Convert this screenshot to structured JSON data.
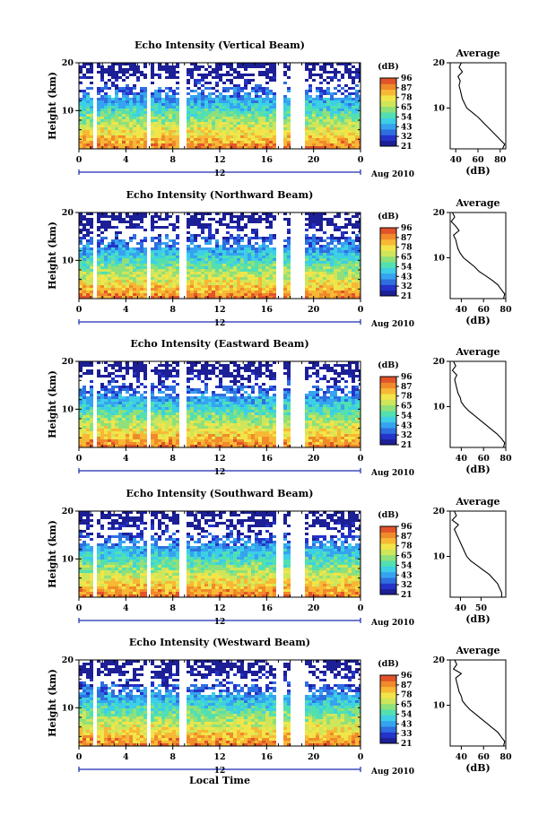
{
  "chart_data": [
    {
      "type": "heatmap",
      "title": "Echo Intensity (Vertical Beam)",
      "ylabel": "Height (km)",
      "xlabel": "",
      "x_ticks": [
        "0",
        "4",
        "8",
        "12",
        "16",
        "20",
        "0"
      ],
      "y_ticks": [
        "20",
        "10"
      ],
      "xlim": [
        0,
        24
      ],
      "ylim": [
        2,
        20
      ],
      "date_label": "Aug 2010",
      "day_label": "12",
      "colorbar": {
        "unit": "(dB)",
        "ticks": [
          "96",
          "87",
          "78",
          "65",
          "54",
          "43",
          "32",
          "21"
        ],
        "range": [
          21,
          96
        ]
      },
      "gaps": [
        [
          1,
          1.5
        ],
        [
          5.7,
          6
        ],
        [
          8.5,
          9
        ],
        [
          16.8,
          17.2
        ],
        [
          18,
          19
        ]
      ],
      "avg_profile": {
        "title": "Average",
        "xlabel": "(dB)",
        "x_ticks": [
          "40",
          "60",
          "80"
        ],
        "y_ticks": [
          "20",
          "10"
        ],
        "xlim": [
          35,
          85
        ],
        "ylim": [
          1,
          20
        ],
        "profile_points": [
          [
            45,
            20
          ],
          [
            43,
            19
          ],
          [
            46,
            18
          ],
          [
            42,
            17
          ],
          [
            44,
            16
          ],
          [
            43,
            15
          ],
          [
            44,
            14
          ],
          [
            45,
            13
          ],
          [
            46,
            12
          ],
          [
            48,
            11
          ],
          [
            50,
            10
          ],
          [
            55,
            9
          ],
          [
            60,
            8
          ],
          [
            64,
            7
          ],
          [
            68,
            6
          ],
          [
            72,
            5
          ],
          [
            76,
            4
          ],
          [
            80,
            3
          ],
          [
            84,
            2
          ],
          [
            82,
            1
          ]
        ]
      }
    },
    {
      "type": "heatmap",
      "title": "Echo Intensity (Northward Beam)",
      "ylabel": "Height (km)",
      "xlabel": "",
      "x_ticks": [
        "0",
        "4",
        "8",
        "12",
        "16",
        "20",
        "0"
      ],
      "y_ticks": [
        "20",
        "10"
      ],
      "xlim": [
        0,
        24
      ],
      "ylim": [
        2,
        20
      ],
      "date_label": "Aug 2010",
      "day_label": "12",
      "colorbar": {
        "unit": "(dB)",
        "ticks": [
          "96",
          "87",
          "78",
          "65",
          "54",
          "43",
          "32",
          "21"
        ],
        "range": [
          21,
          96
        ]
      },
      "gaps": [
        [
          1,
          1.5
        ],
        [
          5.7,
          6
        ],
        [
          8.5,
          9
        ],
        [
          16.8,
          17.2
        ],
        [
          18,
          19
        ]
      ],
      "avg_profile": {
        "title": "Average",
        "xlabel": "(dB)",
        "x_ticks": [
          "40",
          "60",
          "80"
        ],
        "y_ticks": [
          "20",
          "10"
        ],
        "xlim": [
          30,
          80
        ],
        "ylim": [
          1,
          20
        ],
        "profile_points": [
          [
            32,
            20
          ],
          [
            34,
            19
          ],
          [
            31,
            18
          ],
          [
            35,
            17
          ],
          [
            38,
            16
          ],
          [
            33,
            15
          ],
          [
            35,
            14
          ],
          [
            36,
            13
          ],
          [
            37,
            12
          ],
          [
            39,
            11
          ],
          [
            42,
            10
          ],
          [
            47,
            9
          ],
          [
            52,
            8
          ],
          [
            56,
            7
          ],
          [
            62,
            6
          ],
          [
            68,
            5
          ],
          [
            73,
            4
          ],
          [
            76,
            3
          ],
          [
            79,
            2
          ],
          [
            78,
            1
          ]
        ]
      }
    },
    {
      "type": "heatmap",
      "title": "Echo Intensity (Eastward Beam)",
      "ylabel": "Height (km)",
      "xlabel": "",
      "x_ticks": [
        "0",
        "4",
        "8",
        "12",
        "16",
        "20",
        "0"
      ],
      "y_ticks": [
        "20",
        "10"
      ],
      "xlim": [
        0,
        24
      ],
      "ylim": [
        2,
        20
      ],
      "date_label": "Aug 2010",
      "day_label": "12",
      "colorbar": {
        "unit": "(dB)",
        "ticks": [
          "96",
          "87",
          "78",
          "65",
          "54",
          "43",
          "32",
          "21"
        ],
        "range": [
          21,
          96
        ]
      },
      "gaps": [
        [
          1,
          1.5
        ],
        [
          5.7,
          6
        ],
        [
          8.5,
          9
        ],
        [
          16.8,
          17.2
        ],
        [
          18,
          19
        ]
      ],
      "avg_profile": {
        "title": "Average",
        "xlabel": "(dB)",
        "x_ticks": [
          "40",
          "60",
          "80"
        ],
        "y_ticks": [
          "20",
          "10"
        ],
        "xlim": [
          30,
          80
        ],
        "ylim": [
          1,
          20
        ],
        "profile_points": [
          [
            33,
            20
          ],
          [
            35,
            19
          ],
          [
            32,
            18
          ],
          [
            36,
            17
          ],
          [
            34,
            16
          ],
          [
            35,
            15
          ],
          [
            36,
            14
          ],
          [
            37,
            13
          ],
          [
            39,
            12
          ],
          [
            40,
            11
          ],
          [
            43,
            10
          ],
          [
            47,
            9
          ],
          [
            52,
            8
          ],
          [
            57,
            7
          ],
          [
            62,
            6
          ],
          [
            67,
            5
          ],
          [
            72,
            4
          ],
          [
            76,
            3
          ],
          [
            79,
            2
          ],
          [
            78,
            1
          ]
        ]
      }
    },
    {
      "type": "heatmap",
      "title": "Echo Intensity (Southward Beam)",
      "ylabel": "Height (km)",
      "xlabel": "",
      "x_ticks": [
        "0",
        "4",
        "8",
        "12",
        "16",
        "20",
        "0"
      ],
      "y_ticks": [
        "20",
        "10"
      ],
      "xlim": [
        0,
        24
      ],
      "ylim": [
        2,
        20
      ],
      "date_label": "Aug 2010",
      "day_label": "12",
      "colorbar": {
        "unit": "(dB)",
        "ticks": [
          "96",
          "87",
          "78",
          "65",
          "54",
          "43",
          "32",
          "21"
        ],
        "range": [
          21,
          96
        ]
      },
      "gaps": [
        [
          1,
          1.5
        ],
        [
          5.7,
          6
        ],
        [
          8.5,
          9
        ],
        [
          16.8,
          17.2
        ],
        [
          18,
          19
        ]
      ],
      "avg_profile": {
        "title": "Average",
        "xlabel": "(dB)",
        "x_ticks": [
          "40",
          "50"
        ],
        "y_ticks": [
          "20",
          "10"
        ],
        "xlim": [
          35,
          62
        ],
        "ylim": [
          1,
          20
        ],
        "profile_points": [
          [
            37,
            20
          ],
          [
            38,
            19
          ],
          [
            36,
            18
          ],
          [
            39,
            17
          ],
          [
            37,
            16
          ],
          [
            38,
            15
          ],
          [
            39,
            14
          ],
          [
            40,
            13
          ],
          [
            41,
            12
          ],
          [
            42,
            11
          ],
          [
            43,
            10
          ],
          [
            45,
            9
          ],
          [
            48,
            8
          ],
          [
            51,
            7
          ],
          [
            54,
            6
          ],
          [
            56,
            5
          ],
          [
            58,
            4
          ],
          [
            59,
            3
          ],
          [
            60,
            2
          ],
          [
            60,
            1
          ]
        ]
      }
    },
    {
      "type": "heatmap",
      "title": "Echo Intensity (Westward Beam)",
      "ylabel": "Height (km)",
      "xlabel": "Local Time",
      "x_ticks": [
        "0",
        "4",
        "8",
        "12",
        "16",
        "20",
        "0"
      ],
      "y_ticks": [
        "20",
        "10"
      ],
      "xlim": [
        0,
        24
      ],
      "ylim": [
        2,
        20
      ],
      "date_label": "Aug 2010",
      "day_label": "12",
      "colorbar": {
        "unit": "(dB)",
        "ticks": [
          "96",
          "87",
          "78",
          "65",
          "54",
          "43",
          "33",
          "21"
        ],
        "range": [
          21,
          96
        ]
      },
      "gaps": [
        [
          1,
          1.5
        ],
        [
          5.7,
          6
        ],
        [
          8.5,
          9
        ],
        [
          16.8,
          17.2
        ],
        [
          18,
          19
        ]
      ],
      "avg_profile": {
        "title": "Average",
        "xlabel": "(dB)",
        "x_ticks": [
          "40",
          "60",
          "80"
        ],
        "y_ticks": [
          "20",
          "10"
        ],
        "xlim": [
          30,
          80
        ],
        "ylim": [
          1,
          20
        ],
        "profile_points": [
          [
            34,
            20
          ],
          [
            36,
            19
          ],
          [
            33,
            18
          ],
          [
            40,
            17
          ],
          [
            35,
            16
          ],
          [
            36,
            15
          ],
          [
            37,
            14
          ],
          [
            38,
            13
          ],
          [
            40,
            12
          ],
          [
            41,
            11
          ],
          [
            44,
            10
          ],
          [
            48,
            9
          ],
          [
            53,
            8
          ],
          [
            58,
            7
          ],
          [
            63,
            6
          ],
          [
            68,
            5
          ],
          [
            73,
            4
          ],
          [
            76,
            3
          ],
          [
            79,
            2
          ],
          [
            78,
            1
          ]
        ]
      }
    }
  ],
  "colors": {
    "scale": [
      "#1c1f96",
      "#2433c8",
      "#2e6fe0",
      "#35a3f0",
      "#3ccfe6",
      "#52e0b0",
      "#8fe07a",
      "#cfe65a",
      "#f2e54a",
      "#f7b935",
      "#f08a2a",
      "#e2532a"
    ]
  }
}
